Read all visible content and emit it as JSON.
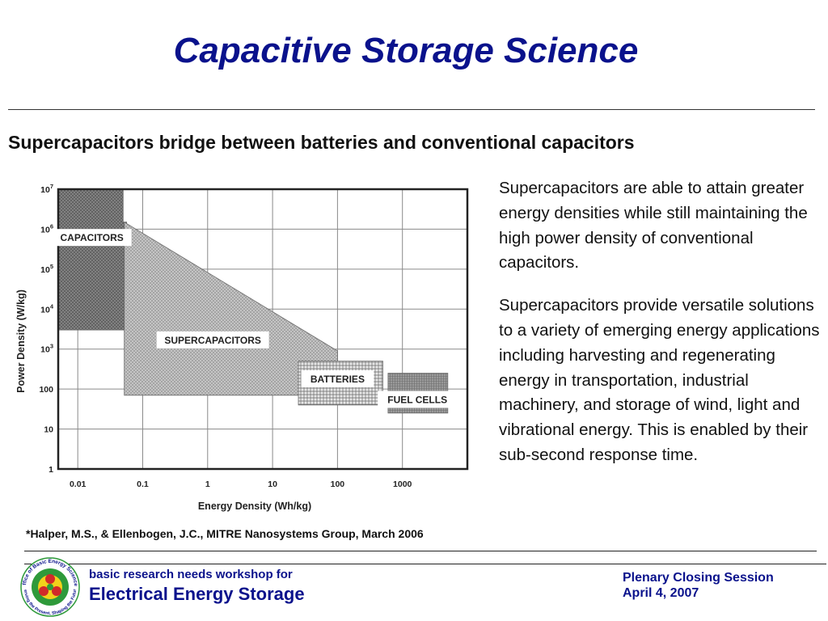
{
  "slide": {
    "title": "Capacitive Storage Science",
    "subtitle": "Supercapacitors bridge between batteries and conventional capacitors",
    "paragraphs": [
      "Supercapacitors are able to attain greater energy densities while still maintaining the high power density of  conventional capacitors.",
      "Supercapacitors provide versatile solutions to a variety of emerging energy applications including harvesting and regenerating energy in transportation, industrial machinery, and storage of wind, light and vibrational energy.  This is enabled by their sub-second response time."
    ],
    "citation": "*Halper, M.S., & Ellenbogen, J.C., MITRE Nanosystems Group, March 2006"
  },
  "footer": {
    "workshop_line": "basic research needs workshop for",
    "workshop_name": "Electrical Energy Storage",
    "session": "Plenary Closing Session",
    "date": "April 4, 2007",
    "logo_ring_top": "Office of Basic Energy Sciences",
    "logo_ring_bottom": "Serving the Present, Shaping the Future",
    "colors": {
      "navy": "#0a128c",
      "logo_green": "#2e9a3a",
      "logo_red": "#d12a2a",
      "logo_yellow": "#f2d21b"
    }
  },
  "chart_data": {
    "type": "area",
    "xlabel": "Energy Density (Wh/kg)",
    "ylabel": "Power Density (W/kg)",
    "x_scale": "log",
    "y_scale": "log",
    "xlim": [
      0.005,
      10000
    ],
    "ylim": [
      1,
      10000000
    ],
    "x_ticks": [
      {
        "value": 0.01,
        "label": "0.01"
      },
      {
        "value": 0.1,
        "label": "0.1"
      },
      {
        "value": 1,
        "label": "1"
      },
      {
        "value": 10,
        "label": "10"
      },
      {
        "value": 100,
        "label": "100"
      },
      {
        "value": 1000,
        "label": "1000"
      }
    ],
    "y_ticks": [
      {
        "value": 1,
        "base": "1",
        "exp": ""
      },
      {
        "value": 10,
        "base": "10",
        "exp": ""
      },
      {
        "value": 100,
        "base": "100",
        "exp": ""
      },
      {
        "value": 1000,
        "base": "10",
        "exp": "3"
      },
      {
        "value": 10000,
        "base": "10",
        "exp": "4"
      },
      {
        "value": 100000,
        "base": "10",
        "exp": "5"
      },
      {
        "value": 1000000,
        "base": "10",
        "exp": "6"
      },
      {
        "value": 10000000,
        "base": "10",
        "exp": "7"
      }
    ],
    "grid": true,
    "regions": [
      {
        "label": "CAPACITORS",
        "pattern": "dense-grey",
        "polygon": [
          [
            0.005,
            10000000
          ],
          [
            0.05,
            10000000
          ],
          [
            0.05,
            1500000
          ],
          [
            0.0565,
            1500000
          ],
          [
            0.0565,
            3000
          ],
          [
            0.005,
            3000
          ]
        ],
        "label_at": [
          0.0165,
          620000
        ]
      },
      {
        "label": "SUPERCAPACITORS",
        "pattern": "light-grey",
        "polygon": [
          [
            0.052,
            1500000
          ],
          [
            100,
            900
          ],
          [
            100,
            70
          ],
          [
            0.052,
            70
          ]
        ],
        "label_at": [
          1.2,
          1700
        ]
      },
      {
        "label": "BATTERIES",
        "pattern": "fine-grid",
        "polygon": [
          [
            25,
            500
          ],
          [
            500,
            500
          ],
          [
            500,
            40
          ],
          [
            25,
            40
          ]
        ],
        "label_at": [
          100,
          180
        ]
      },
      {
        "label": "FUEL CELLS",
        "pattern": "dark-grey",
        "polygon": [
          [
            600,
            250
          ],
          [
            5000,
            250
          ],
          [
            5000,
            25
          ],
          [
            600,
            25
          ]
        ],
        "label_at": [
          1700,
          55
        ]
      }
    ]
  }
}
